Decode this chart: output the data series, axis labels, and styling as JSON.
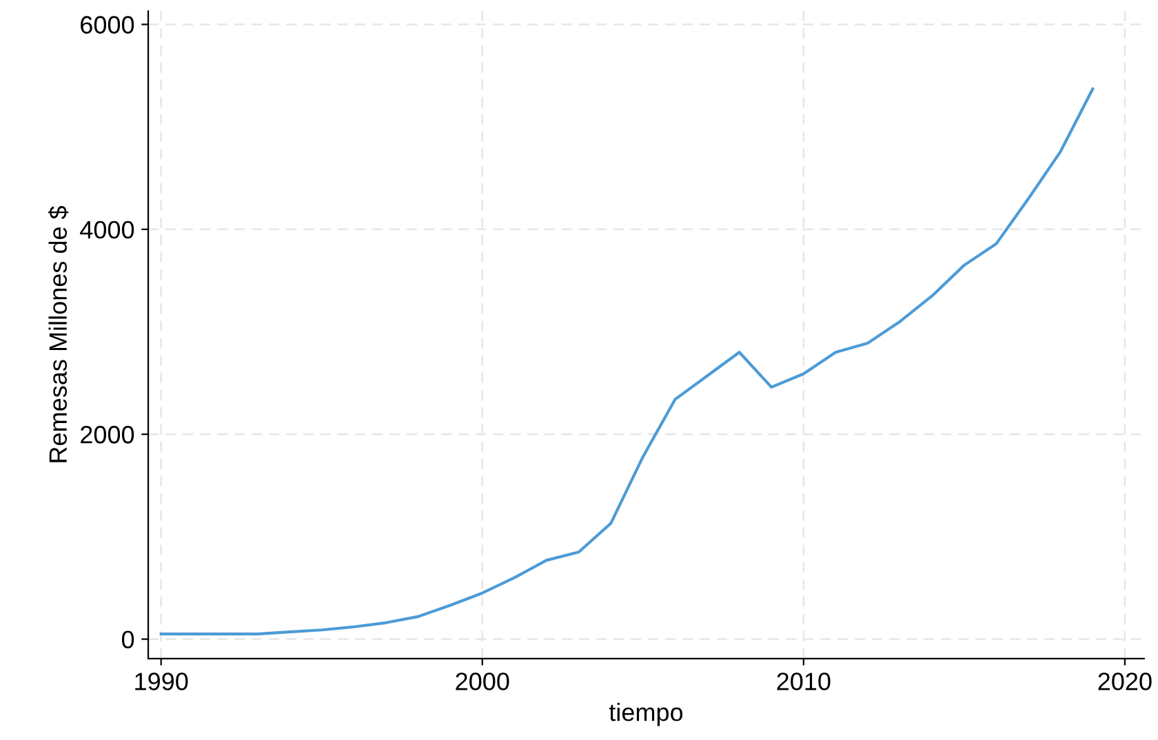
{
  "chart_data": {
    "type": "line",
    "xlabel": "tiempo",
    "ylabel": "Remesas Millones de $",
    "x": [
      1990,
      1991,
      1992,
      1993,
      1994,
      1995,
      1996,
      1997,
      1998,
      1999,
      2000,
      2001,
      2002,
      2003,
      2004,
      2005,
      2006,
      2007,
      2008,
      2009,
      2010,
      2011,
      2012,
      2013,
      2014,
      2015,
      2016,
      2017,
      2018,
      2019
    ],
    "series": [
      {
        "color": "#4c9bd6",
        "values": [
          50,
          50,
          50,
          50,
          70,
          90,
          120,
          160,
          220,
          330,
          450,
          600,
          770,
          850,
          1130,
          1780,
          2340,
          2570,
          2800,
          2460,
          2590,
          2800,
          2890,
          3100,
          3350,
          3650,
          3860,
          4300,
          4760,
          5370
        ]
      }
    ],
    "xlim": [
      1989.6,
      2020.6
    ],
    "ylim": [
      -190,
      6130
    ],
    "xticks": [
      1990,
      2000,
      2010,
      2020
    ],
    "yticks": [
      0,
      2000,
      4000,
      6000
    ],
    "grid": true,
    "line_style": "solid",
    "marker": "none"
  }
}
